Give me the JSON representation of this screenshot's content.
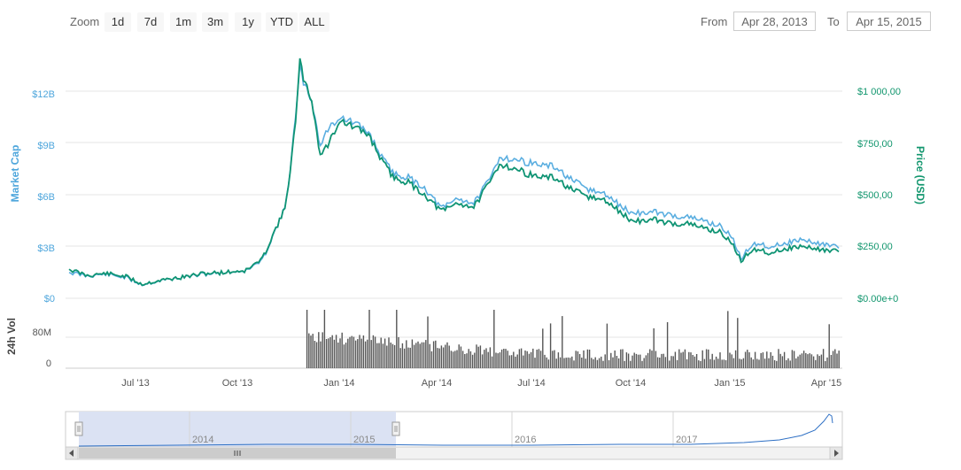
{
  "toolbar": {
    "zoom_label": "Zoom",
    "zoom_buttons": [
      "1d",
      "7d",
      "1m",
      "3m",
      "1y",
      "YTD",
      "ALL"
    ],
    "from_label": "From",
    "from_value": "Apr 28, 2013",
    "to_label": "To",
    "to_value": "Apr 15, 2015"
  },
  "colors": {
    "market_cap": "#5aaee0",
    "price": "#0f9474",
    "volume": "#555555",
    "navigator_fill": "#dbe2f3"
  },
  "chart_data": {
    "type": "line",
    "left_axis": {
      "title": "Market Cap",
      "ticks": [
        "$0",
        "$3B",
        "$6B",
        "$9B",
        "$12B"
      ],
      "values": [
        0,
        3,
        6,
        9,
        12
      ],
      "unit": "billion USD"
    },
    "right_axis": {
      "title": "Price (USD)",
      "ticks": [
        "$0.00e+0",
        "$250,00",
        "$500,00",
        "$750,00",
        "$1 000,00"
      ],
      "values": [
        0,
        250,
        500,
        750,
        1000
      ]
    },
    "volume_axis": {
      "title": "24h Vol",
      "ticks": [
        "0",
        "80M"
      ],
      "values": [
        0,
        80
      ]
    },
    "x_ticks": [
      "Jul '13",
      "Oct '13",
      "Jan '14",
      "Apr '14",
      "Jul '14",
      "Oct '14",
      "Jan '15",
      "Apr '15"
    ],
    "navigator_ticks": [
      "2014",
      "2015",
      "2016",
      "2017"
    ],
    "grid": true,
    "series": [
      {
        "name": "Market Cap",
        "x": [
          "2013-04-28",
          "2013-05-15",
          "2013-06-01",
          "2013-06-20",
          "2013-07-05",
          "2013-07-20",
          "2013-08-10",
          "2013-09-01",
          "2013-09-20",
          "2013-10-10",
          "2013-10-25",
          "2013-11-05",
          "2013-11-15",
          "2013-11-20",
          "2013-11-25",
          "2013-11-29",
          "2013-12-04",
          "2013-12-10",
          "2013-12-18",
          "2013-12-25",
          "2014-01-05",
          "2014-01-20",
          "2014-02-01",
          "2014-02-15",
          "2014-02-25",
          "2014-03-10",
          "2014-03-25",
          "2014-04-10",
          "2014-04-25",
          "2014-05-10",
          "2014-05-25",
          "2014-06-03",
          "2014-06-20",
          "2014-07-05",
          "2014-07-25",
          "2014-08-10",
          "2014-08-25",
          "2014-09-10",
          "2014-09-25",
          "2014-10-05",
          "2014-10-25",
          "2014-11-10",
          "2014-11-25",
          "2014-12-10",
          "2014-12-25",
          "2015-01-05",
          "2015-01-14",
          "2015-01-25",
          "2015-02-10",
          "2015-02-25",
          "2015-03-10",
          "2015-03-25",
          "2015-04-05",
          "2015-04-15"
        ],
        "values": [
          1.5,
          1.3,
          1.4,
          1.2,
          0.8,
          1.0,
          1.2,
          1.4,
          1.5,
          1.6,
          2.2,
          3.8,
          5.2,
          7.5,
          10.5,
          13.3,
          12.2,
          11.5,
          8.8,
          9.8,
          10.5,
          10.1,
          9.6,
          8.0,
          7.2,
          7.0,
          6.4,
          5.2,
          5.8,
          5.5,
          6.9,
          8.2,
          8.0,
          7.8,
          7.6,
          6.8,
          6.3,
          6.0,
          5.3,
          4.9,
          5.0,
          4.8,
          4.7,
          4.5,
          4.2,
          3.6,
          2.3,
          3.2,
          3.0,
          3.2,
          3.4,
          3.2,
          3.1,
          2.9
        ]
      },
      {
        "name": "Price (USD)",
        "x": [
          "2013-04-28",
          "2013-05-15",
          "2013-06-01",
          "2013-06-20",
          "2013-07-05",
          "2013-07-20",
          "2013-08-10",
          "2013-09-01",
          "2013-09-20",
          "2013-10-10",
          "2013-10-25",
          "2013-11-05",
          "2013-11-15",
          "2013-11-20",
          "2013-11-25",
          "2013-11-29",
          "2013-12-04",
          "2013-12-10",
          "2013-12-18",
          "2013-12-25",
          "2014-01-05",
          "2014-01-20",
          "2014-02-01",
          "2014-02-15",
          "2014-02-25",
          "2014-03-10",
          "2014-03-25",
          "2014-04-10",
          "2014-04-25",
          "2014-05-10",
          "2014-05-25",
          "2014-06-03",
          "2014-06-20",
          "2014-07-05",
          "2014-07-25",
          "2014-08-10",
          "2014-08-25",
          "2014-09-10",
          "2014-09-25",
          "2014-10-05",
          "2014-10-25",
          "2014-11-10",
          "2014-11-25",
          "2014-12-10",
          "2014-12-25",
          "2015-01-05",
          "2015-01-14",
          "2015-01-25",
          "2015-02-10",
          "2015-02-25",
          "2015-03-10",
          "2015-03-25",
          "2015-04-05",
          "2015-04-15"
        ],
        "values": [
          140,
          110,
          120,
          105,
          68,
          85,
          100,
          120,
          125,
          135,
          190,
          320,
          430,
          620,
          850,
          1140,
          1030,
          960,
          690,
          740,
          860,
          820,
          790,
          650,
          580,
          560,
          500,
          420,
          460,
          440,
          560,
          650,
          620,
          590,
          580,
          520,
          490,
          470,
          410,
          370,
          380,
          360,
          360,
          340,
          320,
          270,
          180,
          240,
          220,
          240,
          250,
          240,
          230,
          225
        ]
      }
    ],
    "volume_note": "24h trading volume bars from Dec 2013 onward, peaks near 100M"
  }
}
